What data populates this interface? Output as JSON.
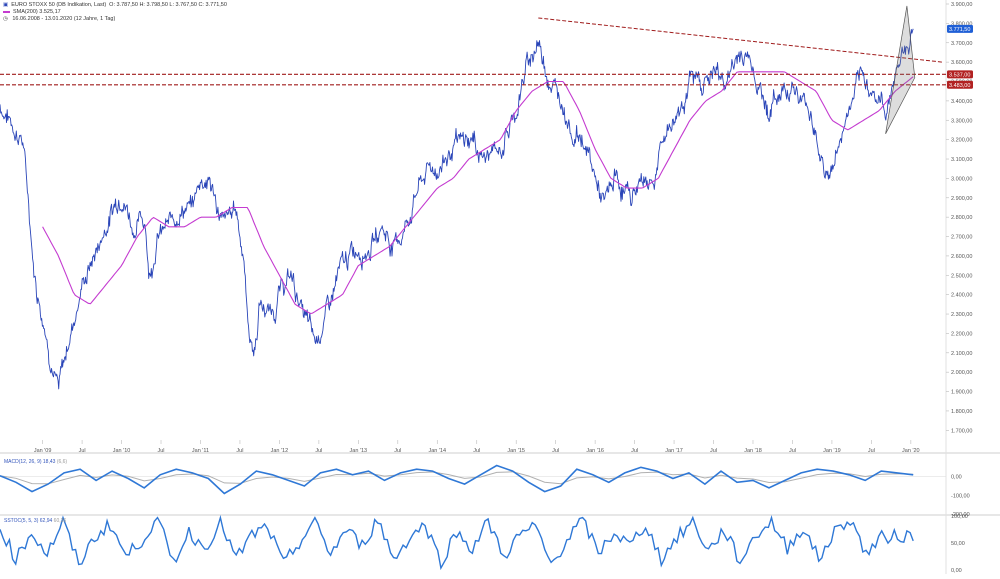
{
  "colors": {
    "price": "#2a45b8",
    "sma": "#c43bd0",
    "trend": "#a01c1c",
    "label_bg": "#b22222",
    "current_bg": "#1f5fd6",
    "macd": "#2f78d6",
    "macd_signal": "#b0b0b0",
    "stoch": "#2f78d6",
    "wedge": "#555555"
  },
  "header": {
    "title": "EURO STOXX 50 (DB Indikation, Last)",
    "ohlc": "O: 3.787,50  H: 3.798,50  L: 3.767,50  C: 3.771,50",
    "sma": "SMA(200)  3.525,17",
    "range": "16.06.2008 - 13.01.2020  (12 Jahre, 1 Tag)"
  },
  "macd_legend": {
    "label": "MACD(12, 26, 9)",
    "value": "18,43",
    "value2": "(6,6)"
  },
  "stoch_legend": {
    "label": "SSTOC(5, 5, 3)",
    "value": "62,94",
    "value2": "60,36"
  },
  "chart_data": [
    {
      "type": "line",
      "series": [
        {
          "x": [
            2008.46,
            2008.75,
            2008.9,
            2009.0,
            2009.1,
            2009.2,
            2009.35,
            2009.5,
            2009.7,
            2009.9,
            2010.0,
            2010.15,
            2010.3,
            2010.35,
            2010.45,
            2010.6,
            2010.75,
            2010.9,
            2011.0,
            2011.1,
            2011.3,
            2011.45,
            2011.55,
            2011.6,
            2011.68,
            2011.75,
            2011.9,
            2012.0,
            2012.15,
            2012.3,
            2012.45,
            2012.6,
            2012.75,
            2012.9,
            2013.0,
            2013.15,
            2013.3,
            2013.45,
            2013.6,
            2013.75,
            2013.9,
            2014.0,
            2014.2,
            2014.45,
            2014.6,
            2014.8,
            2015.0,
            2015.15,
            2015.28,
            2015.4,
            2015.5,
            2015.6,
            2015.7,
            2015.85,
            2016.0,
            2016.12,
            2016.25,
            2016.45,
            2016.6,
            2016.75,
            2016.9,
            2017.0,
            2017.2,
            2017.35,
            2017.5,
            2017.65,
            2017.85,
            2018.0,
            2018.1,
            2018.2,
            2018.35,
            2018.5,
            2018.6,
            2018.75,
            2018.85,
            2018.98,
            2019.1,
            2019.3,
            2019.45,
            2019.6,
            2019.68,
            2019.8,
            2019.9,
            2020.03
          ],
          "values": [
            3380,
            3200,
            2500,
            2300,
            2100,
            1900,
            2200,
            2450,
            2650,
            2850,
            2950,
            2750,
            2800,
            2500,
            2700,
            2750,
            2850,
            2850,
            3000,
            3000,
            2750,
            2850,
            2600,
            2250,
            2100,
            2350,
            2300,
            2400,
            2500,
            2300,
            2150,
            2300,
            2500,
            2600,
            2650,
            2650,
            2750,
            2650,
            2750,
            2950,
            3050,
            3050,
            3150,
            3200,
            3100,
            3150,
            3350,
            3600,
            3700,
            3550,
            3450,
            3400,
            3250,
            3200,
            3000,
            2850,
            3000,
            2900,
            3000,
            3000,
            3250,
            3300,
            3500,
            3500,
            3550,
            3500,
            3650,
            3600,
            3450,
            3350,
            3450,
            3500,
            3400,
            3350,
            3100,
            3000,
            3200,
            3450,
            3500,
            3400,
            3350,
            3550,
            3650,
            3772
          ]
        },
        {
          "name": "SMA(200)",
          "x": [
            2009.0,
            2009.2,
            2009.4,
            2009.6,
            2009.8,
            2010.0,
            2010.2,
            2010.4,
            2010.6,
            2010.8,
            2011.0,
            2011.2,
            2011.4,
            2011.6,
            2011.8,
            2012.0,
            2012.2,
            2012.4,
            2012.6,
            2012.8,
            2013.0,
            2013.2,
            2013.4,
            2013.6,
            2013.8,
            2014.0,
            2014.2,
            2014.4,
            2014.6,
            2014.8,
            2015.0,
            2015.2,
            2015.4,
            2015.6,
            2015.8,
            2016.0,
            2016.2,
            2016.4,
            2016.6,
            2016.8,
            2017.0,
            2017.2,
            2017.4,
            2017.6,
            2017.8,
            2018.0,
            2018.2,
            2018.4,
            2018.6,
            2018.8,
            2019.0,
            2019.2,
            2019.4,
            2019.6,
            2019.8,
            2020.03
          ],
          "values": [
            2750,
            2600,
            2400,
            2350,
            2450,
            2550,
            2700,
            2800,
            2750,
            2750,
            2800,
            2800,
            2850,
            2850,
            2650,
            2500,
            2350,
            2300,
            2350,
            2400,
            2550,
            2600,
            2650,
            2750,
            2850,
            2950,
            3000,
            3100,
            3150,
            3200,
            3350,
            3450,
            3500,
            3500,
            3350,
            3150,
            3000,
            2950,
            2950,
            3000,
            3150,
            3300,
            3400,
            3450,
            3550,
            3550,
            3550,
            3550,
            3500,
            3450,
            3300,
            3250,
            3300,
            3350,
            3450,
            3525
          ]
        }
      ],
      "ylim": [
        1650,
        3900
      ],
      "y_ticks": [
        "3.900,00",
        "3.800,00",
        "3.700,00",
        "3.600,00",
        "3.500,00",
        "3.400,00",
        "3.300,00",
        "3.200,00",
        "3.100,00",
        "3.000,00",
        "2.900,00",
        "2.800,00",
        "2.700,00",
        "2.600,00",
        "2.500,00",
        "2.400,00",
        "2.300,00",
        "2.200,00",
        "2.100,00",
        "2.000,00",
        "1.900,00",
        "1.800,00",
        "1.700,00"
      ],
      "x_ticks": [
        "Jan '09",
        "Jul",
        "Jan '10",
        "Jul",
        "Jan '11",
        "Jul",
        "Jan '12",
        "Jul",
        "Jan '13",
        "Jul",
        "Jan '14",
        "Jul",
        "Jan '15",
        "Jul",
        "Jan '16",
        "Jul",
        "Jan '17",
        "Jul",
        "Jan '18",
        "Jul",
        "Jan '19",
        "Jul",
        "Jan '20"
      ],
      "x_tick_positions": [
        2009.0,
        2009.5,
        2010.0,
        2010.5,
        2011.0,
        2011.5,
        2012.0,
        2012.5,
        2013.0,
        2013.5,
        2014.0,
        2014.5,
        2015.0,
        2015.5,
        2016.0,
        2016.5,
        2017.0,
        2017.5,
        2018.0,
        2018.5,
        2019.0,
        2019.5,
        2020.0
      ],
      "horizontal_lines": [
        3537,
        3483
      ],
      "trendline": {
        "x": [
          2015.28,
          2020.4
        ],
        "values": [
          3828,
          3600
        ]
      },
      "price_labels": [
        {
          "text": "3.771,50",
          "value": 3771.5,
          "kind": "current"
        },
        {
          "text": "3.537,00",
          "value": 3537,
          "kind": "level"
        },
        {
          "text": "3.483,00",
          "value": 3483,
          "kind": "level"
        }
      ],
      "grid": false
    },
    {
      "type": "line",
      "series": [
        {
          "name": "MACD",
          "values": [
            5,
            -30,
            -80,
            -40,
            20,
            40,
            -20,
            30,
            -10,
            -60,
            10,
            40,
            20,
            -10,
            -90,
            -40,
            30,
            10,
            -20,
            -50,
            20,
            40,
            10,
            30,
            -20,
            20,
            40,
            30,
            -10,
            -40,
            10,
            60,
            30,
            -30,
            -80,
            -50,
            40,
            10,
            -30,
            20,
            50,
            30,
            -10,
            20,
            -40,
            30,
            -30,
            -20,
            -60,
            -20,
            20,
            40,
            30,
            10,
            -20,
            30,
            20,
            10
          ]
        }
      ],
      "ylim": [
        -200,
        100
      ],
      "y_ticks": [
        "0,00",
        "-100,00",
        "-200,00"
      ]
    },
    {
      "type": "line",
      "series": [
        {
          "name": "SSTOC",
          "values": [
            80,
            20,
            70,
            30,
            90,
            10,
            60,
            85,
            25,
            55,
            95,
            15,
            70,
            40,
            90,
            20,
            65,
            80,
            10,
            50,
            90,
            30,
            75,
            45,
            95,
            20,
            60,
            85,
            15,
            70,
            40,
            90,
            25,
            65,
            80,
            10,
            55,
            95,
            30,
            70,
            45,
            85,
            20,
            60,
            90,
            35,
            75,
            15,
            65,
            90,
            40,
            80,
            20,
            70,
            95,
            30,
            60,
            63
          ]
        }
      ],
      "ylim": [
        0,
        100
      ],
      "y_ticks": [
        "100,00",
        "50,00",
        "0,00"
      ]
    }
  ]
}
